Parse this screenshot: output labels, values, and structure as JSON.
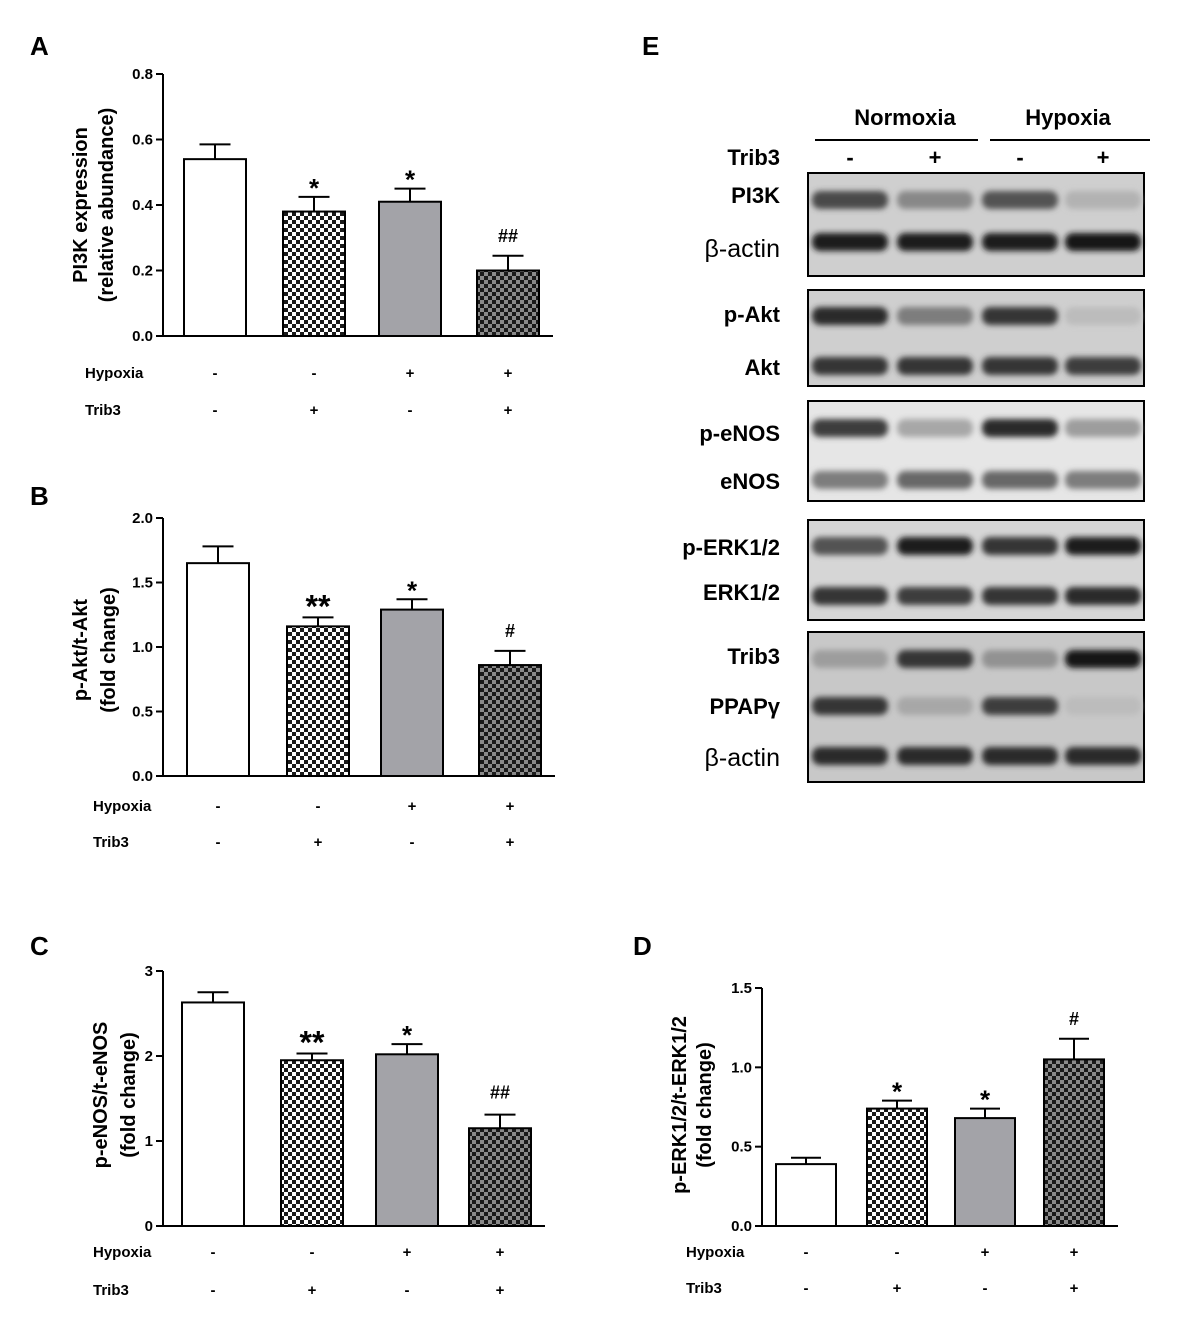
{
  "chart_data": [
    {
      "panel": "A",
      "type": "bar",
      "ylabel": [
        "PI3K expression",
        "(relative abundance)"
      ],
      "ylim": [
        0,
        0.8
      ],
      "yticks": [
        "0.0",
        "0.2",
        "0.4",
        "0.6",
        "0.8"
      ],
      "values": [
        0.54,
        0.38,
        0.41,
        0.2
      ],
      "errors": [
        0.045,
        0.045,
        0.04,
        0.045
      ],
      "significance": [
        "",
        "*",
        "*",
        "##"
      ],
      "rows": [
        {
          "label": "Hypoxia",
          "signs": [
            "-",
            "-",
            "+",
            "+"
          ]
        },
        {
          "label": "Trib3",
          "signs": [
            "-",
            "+",
            "-",
            "+"
          ]
        }
      ]
    },
    {
      "panel": "B",
      "type": "bar",
      "ylabel": [
        "p-Akt/t-Akt",
        "(fold change)"
      ],
      "ylim": [
        0,
        2.0
      ],
      "yticks": [
        "0.0",
        "0.5",
        "1.0",
        "1.5",
        "2.0"
      ],
      "values": [
        1.65,
        1.16,
        1.29,
        0.86
      ],
      "errors": [
        0.13,
        0.07,
        0.08,
        0.11
      ],
      "significance": [
        "",
        "**",
        "*",
        "#"
      ],
      "rows": [
        {
          "label": "Hypoxia",
          "signs": [
            "-",
            "-",
            "+",
            "+"
          ]
        },
        {
          "label": "Trib3",
          "signs": [
            "-",
            "+",
            "-",
            "+"
          ]
        }
      ]
    },
    {
      "panel": "C",
      "type": "bar",
      "ylabel": [
        "p-eNOS/t-eNOS",
        "(fold change)"
      ],
      "ylim": [
        0,
        3
      ],
      "yticks": [
        "0",
        "1",
        "2",
        "3"
      ],
      "values": [
        2.63,
        1.95,
        2.02,
        1.15
      ],
      "errors": [
        0.12,
        0.08,
        0.12,
        0.16
      ],
      "significance": [
        "",
        "**",
        "*",
        "##"
      ],
      "rows": [
        {
          "label": "Hypoxia",
          "signs": [
            "-",
            "-",
            "+",
            "+"
          ]
        },
        {
          "label": "Trib3",
          "signs": [
            "-",
            "+",
            "-",
            "+"
          ]
        }
      ]
    },
    {
      "panel": "D",
      "type": "bar",
      "ylabel": [
        "p-ERK1/2/t-ERK1/2",
        "(fold change)"
      ],
      "ylim": [
        0,
        1.5
      ],
      "yticks": [
        "0.0",
        "0.5",
        "1.0",
        "1.5"
      ],
      "values": [
        0.39,
        0.74,
        0.68,
        1.05
      ],
      "errors": [
        0.04,
        0.05,
        0.06,
        0.13
      ],
      "significance": [
        "",
        "*",
        "*",
        "#"
      ],
      "rows": [
        {
          "label": "Hypoxia",
          "signs": [
            "-",
            "-",
            "+",
            "+"
          ]
        },
        {
          "label": "Trib3",
          "signs": [
            "-",
            "+",
            "-",
            "+"
          ]
        }
      ]
    }
  ],
  "blot": {
    "panel": "E",
    "groups": [
      "Normoxia",
      "Hypoxia"
    ],
    "trib3_row": {
      "label": "Trib3",
      "signs": [
        "-",
        "+",
        "-",
        "+"
      ]
    },
    "bands": [
      "PI3K",
      "β-actin",
      "p-Akt",
      "Akt",
      "p-eNOS",
      "eNOS",
      "p-ERK1/2",
      "ERK1/2",
      "Trib3",
      "PPAPγ",
      "β-actin"
    ],
    "band_intensity": [
      [
        0.75,
        0.45,
        0.7,
        0.25
      ],
      [
        0.95,
        0.95,
        0.95,
        1.0
      ],
      [
        0.9,
        0.5,
        0.85,
        0.2
      ],
      [
        0.85,
        0.85,
        0.85,
        0.8
      ],
      [
        0.8,
        0.3,
        0.9,
        0.35
      ],
      [
        0.5,
        0.6,
        0.6,
        0.5
      ],
      [
        0.7,
        0.95,
        0.85,
        0.95
      ],
      [
        0.85,
        0.8,
        0.85,
        0.9
      ],
      [
        0.35,
        0.85,
        0.4,
        1.0
      ],
      [
        0.85,
        0.3,
        0.8,
        0.2
      ],
      [
        0.9,
        0.9,
        0.9,
        0.9
      ]
    ]
  },
  "fills": [
    "white",
    "check-light",
    "gray",
    "check-dark"
  ],
  "colors": {
    "bar_gray": "#a3a3a8",
    "axis": "#000000"
  }
}
